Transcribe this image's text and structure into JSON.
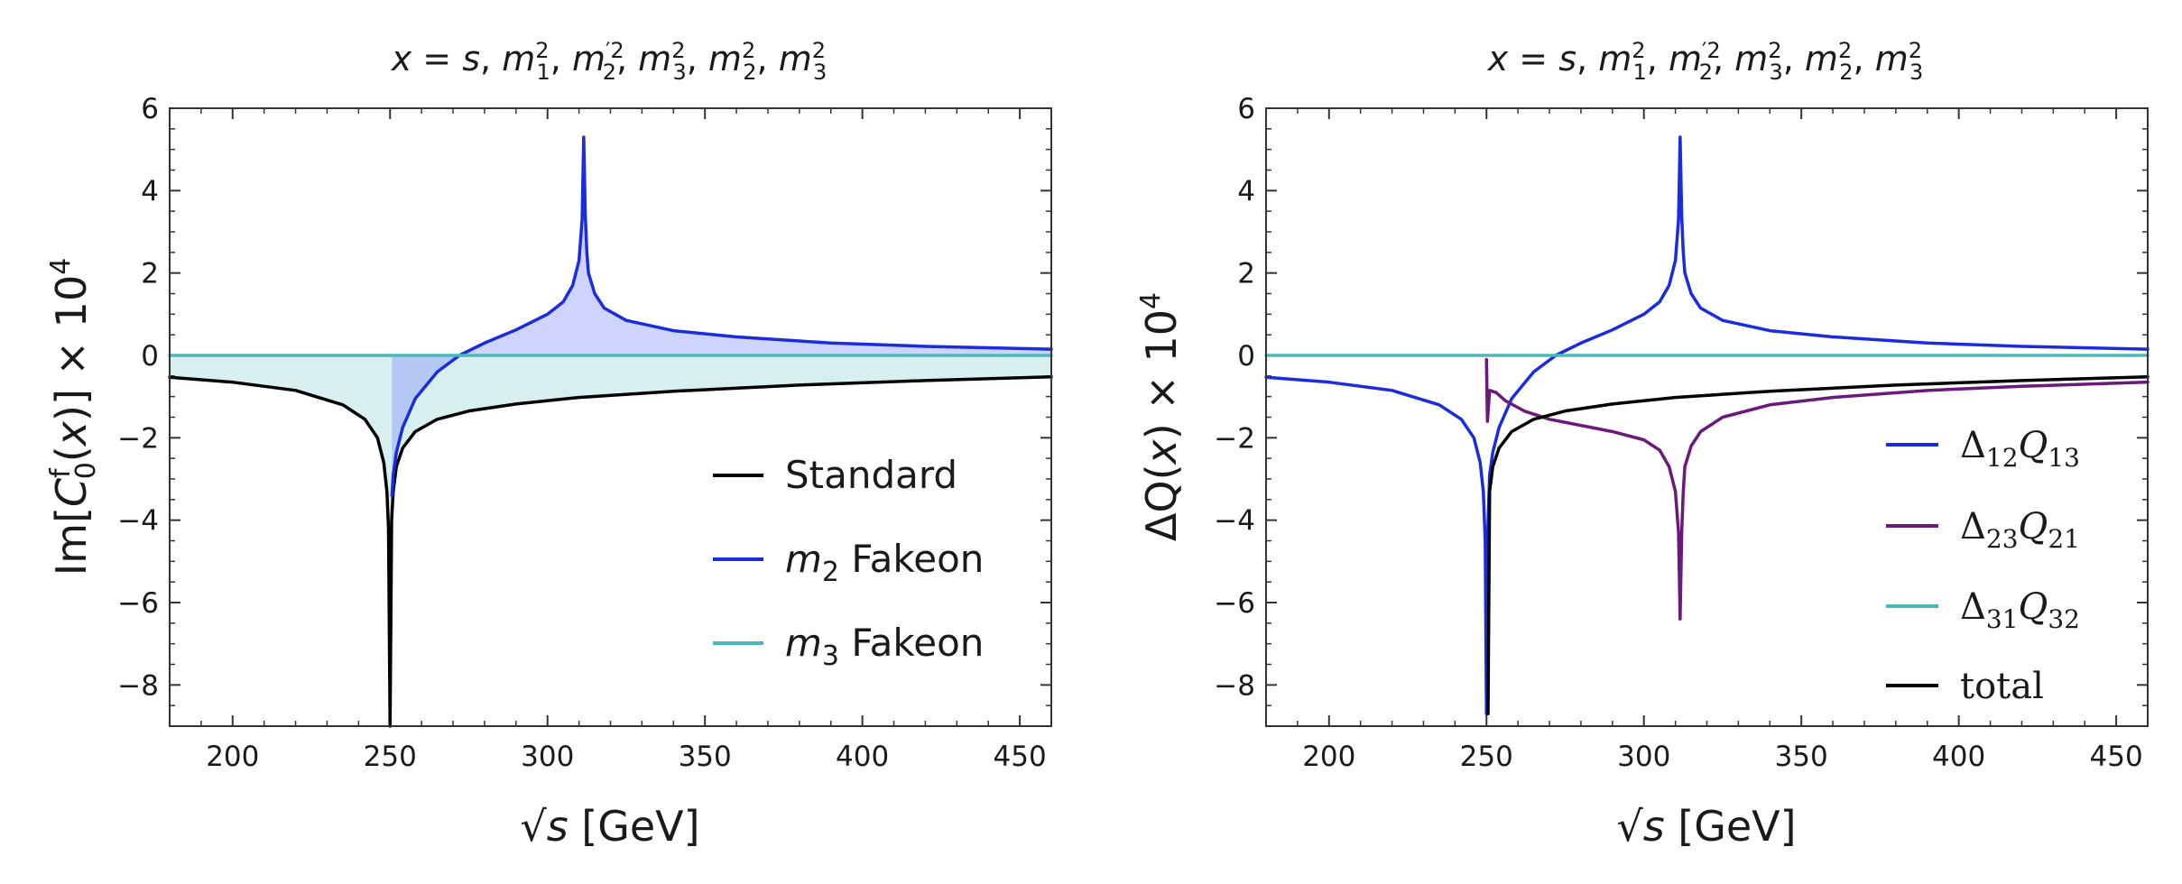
{
  "chart_data": [
    {
      "type": "line",
      "title": "x = s, m1², m2′², m3², m2², m3²",
      "title_parts": [
        "x",
        " = ",
        "s",
        ", ",
        "m",
        "1",
        "2",
        ", ",
        "m",
        "2",
        "′2",
        ", ",
        "m",
        "3",
        "2",
        ", ",
        "m",
        "2",
        "2",
        ", ",
        "m",
        "3",
        "2"
      ],
      "xlabel": "√s [GeV]",
      "xlabel_parts": [
        "√",
        "s",
        " [GeV]"
      ],
      "ylabel": "Im[C0f(x)] × 10⁴",
      "ylabel_parts": [
        "Im[",
        "C",
        "0",
        "f",
        "(",
        "x",
        ")] × 10",
        "4"
      ],
      "xlim": [
        180,
        460
      ],
      "ylim": [
        -9,
        6
      ],
      "xticks": [
        "200",
        "250",
        "300",
        "350",
        "400",
        "450"
      ],
      "yticks": [
        "−8",
        "−6",
        "−4",
        "−2",
        "0",
        "2",
        "4",
        "6"
      ],
      "shaded": true,
      "series": [
        {
          "name": "Standard",
          "color": "#000000",
          "x": [
            180,
            200,
            220,
            235,
            242,
            246,
            248,
            249,
            249.5,
            250,
            250.5,
            251,
            252,
            254,
            258,
            265,
            275,
            290,
            310,
            340,
            380,
            420,
            460
          ],
          "y": [
            -0.53,
            -0.65,
            -0.85,
            -1.2,
            -1.55,
            -2.0,
            -2.6,
            -3.3,
            -4.2,
            -9.0,
            -4.0,
            -3.3,
            -2.7,
            -2.25,
            -1.85,
            -1.55,
            -1.35,
            -1.18,
            -1.02,
            -0.87,
            -0.72,
            -0.61,
            -0.52
          ]
        },
        {
          "name": "m2 Fakeon",
          "legend_parts": [
            "m",
            "2",
            " Fakeon"
          ],
          "color": "#1a2be0",
          "x": [
            250.6,
            251,
            252,
            254,
            258,
            265,
            272,
            280,
            290,
            300,
            305,
            308,
            310,
            311,
            311.5,
            312,
            312.5,
            313,
            315,
            318,
            325,
            340,
            360,
            390,
            420,
            460
          ],
          "y": [
            -3.4,
            -2.9,
            -2.35,
            -1.75,
            -1.05,
            -0.4,
            0.0,
            0.3,
            0.62,
            1.0,
            1.3,
            1.7,
            2.3,
            3.3,
            5.3,
            3.4,
            2.5,
            2.0,
            1.5,
            1.15,
            0.85,
            0.6,
            0.45,
            0.3,
            0.22,
            0.15
          ]
        },
        {
          "name": "m3 Fakeon",
          "legend_parts": [
            "m",
            "3",
            " Fakeon"
          ],
          "color": "#4ab8b8",
          "x": [
            180,
            460
          ],
          "y": [
            0,
            0
          ]
        }
      ],
      "legend": [
        "Standard",
        "m2 Fakeon",
        "m3 Fakeon"
      ]
    },
    {
      "type": "line",
      "title": "x = s, m1², m2′², m3², m2², m3²",
      "title_parts": [
        "x",
        " = ",
        "s",
        ", ",
        "m",
        "1",
        "2",
        ", ",
        "m",
        "2",
        "′2",
        ", ",
        "m",
        "3",
        "2",
        ", ",
        "m",
        "2",
        "2",
        ", ",
        "m",
        "3",
        "2"
      ],
      "xlabel": "√s [GeV]",
      "xlabel_parts": [
        "√",
        "s",
        " [GeV]"
      ],
      "ylabel": "ΔQ(x) × 10⁴",
      "ylabel_parts": [
        "ΔQ(",
        "x",
        ") × 10",
        "4"
      ],
      "xlim": [
        180,
        460
      ],
      "ylim": [
        -9,
        6
      ],
      "xticks": [
        "200",
        "250",
        "300",
        "350",
        "400",
        "450"
      ],
      "yticks": [
        "−8",
        "−6",
        "−4",
        "−2",
        "0",
        "2",
        "4",
        "6"
      ],
      "shaded": false,
      "series": [
        {
          "name": "Δ12Q13",
          "legend_parts": [
            "Δ",
            "12",
            "Q",
            "13"
          ],
          "color": "#1a2be0",
          "x": [
            180,
            200,
            220,
            235,
            242,
            246,
            248,
            249,
            249.6,
            250,
            250.4,
            251,
            252,
            254,
            258,
            265,
            272,
            280,
            290,
            300,
            305,
            308,
            310,
            311,
            311.5,
            312,
            312.5,
            313,
            315,
            318,
            325,
            340,
            360,
            390,
            420,
            460
          ],
          "y": [
            -0.53,
            -0.65,
            -0.85,
            -1.2,
            -1.55,
            -2.0,
            -2.6,
            -3.3,
            -4.5,
            -8.7,
            -4.3,
            -2.9,
            -2.35,
            -1.75,
            -1.05,
            -0.4,
            0.0,
            0.3,
            0.62,
            1.0,
            1.3,
            1.7,
            2.3,
            3.3,
            5.3,
            3.4,
            2.5,
            2.0,
            1.5,
            1.15,
            0.85,
            0.6,
            0.45,
            0.3,
            0.22,
            0.15
          ]
        },
        {
          "name": "Δ23Q21",
          "legend_parts": [
            "Δ",
            "23",
            "Q",
            "21"
          ],
          "color": "#6a1a7a",
          "x": [
            250,
            250.3,
            251,
            253,
            256,
            262,
            270,
            280,
            290,
            300,
            305,
            308,
            310,
            311,
            311.5,
            312,
            312.5,
            313,
            315,
            318,
            325,
            340,
            360,
            390,
            420,
            460
          ],
          "y": [
            -0.1,
            -1.6,
            -0.85,
            -0.9,
            -1.1,
            -1.35,
            -1.55,
            -1.7,
            -1.85,
            -2.05,
            -2.3,
            -2.7,
            -3.3,
            -4.3,
            -6.4,
            -4.3,
            -3.3,
            -2.7,
            -2.2,
            -1.85,
            -1.5,
            -1.2,
            -1.02,
            -0.85,
            -0.75,
            -0.65
          ]
        },
        {
          "name": "Δ31Q32",
          "legend_parts": [
            "Δ",
            "31",
            "Q",
            "32"
          ],
          "color": "#4ab8b8",
          "x": [
            180,
            460
          ],
          "y": [
            0,
            0
          ]
        },
        {
          "name": "total",
          "color": "#000000",
          "x": [
            250.5,
            251,
            252,
            254,
            258,
            265,
            275,
            290,
            310,
            340,
            380,
            420,
            460
          ],
          "y": [
            -8.7,
            -3.3,
            -2.7,
            -2.25,
            -1.85,
            -1.55,
            -1.35,
            -1.18,
            -1.02,
            -0.87,
            -0.72,
            -0.61,
            -0.52
          ]
        }
      ],
      "legend": [
        "Δ12Q13",
        "Δ23Q21",
        "Δ31Q32",
        "total"
      ]
    }
  ]
}
